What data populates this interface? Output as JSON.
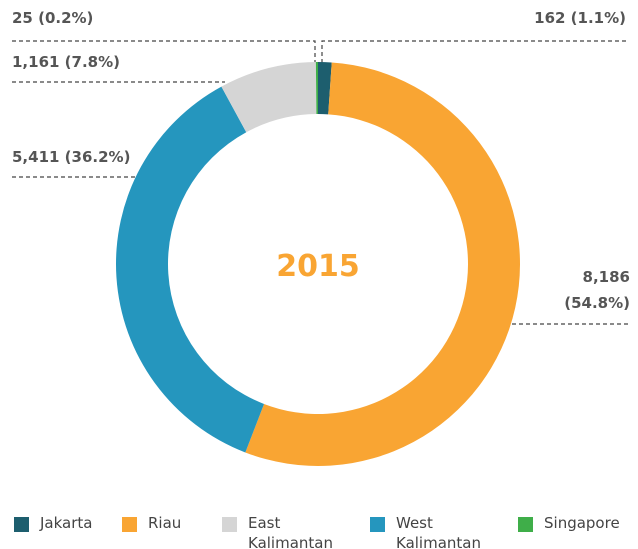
{
  "chart_data": {
    "type": "donut",
    "title": "2015",
    "categories": [
      "Jakarta",
      "Riau",
      "East Kalimantan",
      "West Kalimantan",
      "Singapore"
    ],
    "values": [
      162,
      8186,
      1161,
      5411,
      25
    ],
    "value_labels": [
      "162 (1.1%)",
      "8,186 (54.8%)",
      "1,161 (7.8%)",
      "5,411 (36.2%)",
      "25 (0.2%)"
    ],
    "colors": [
      "#1d5e6e",
      "#f9a533",
      "#d5d5d5",
      "#2596be",
      "#3fae49"
    ],
    "legend": "bottom"
  }
}
